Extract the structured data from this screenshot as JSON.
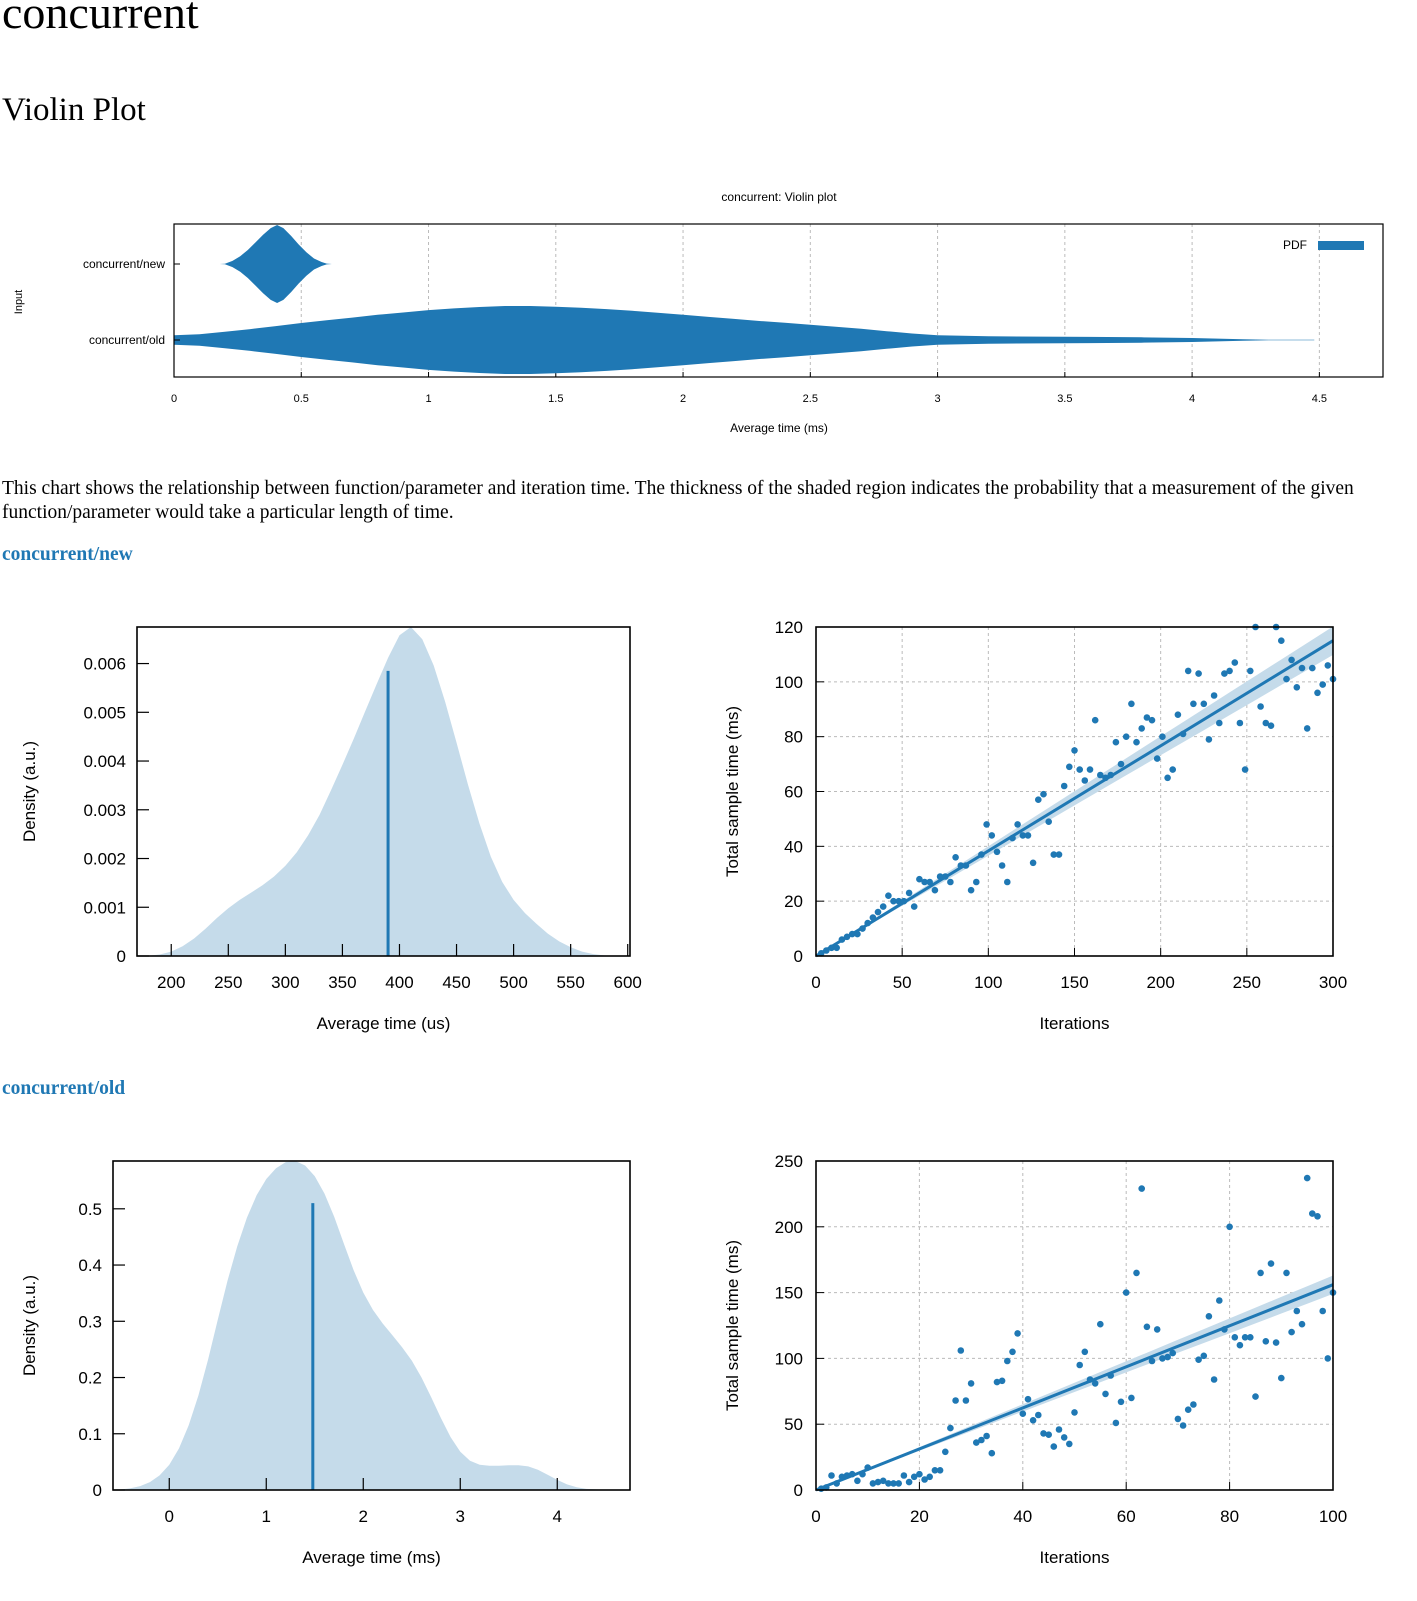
{
  "header": {
    "title": "concurrent",
    "subtitle": "Violin Plot"
  },
  "description": "This chart shows the relationship between function/parameter and iteration time. The thickness of the shaded region indicates the probability that a measurement of the given function/parameter would take a particular length of time.",
  "sections": [
    {
      "title": "concurrent/new"
    },
    {
      "title": "concurrent/old"
    }
  ],
  "colors": {
    "accent": "#1f78b4",
    "fill_light": "#c5dbea",
    "grid": "#bbbbbb"
  },
  "chart_data": [
    {
      "id": "violin",
      "type": "violin",
      "title": "concurrent: Violin plot",
      "xlabel": "Average time (ms)",
      "ylabel": "Input",
      "xlim": [
        0,
        4.75
      ],
      "xticks": [
        0,
        0.5,
        1,
        1.5,
        2,
        2.5,
        3,
        3.5,
        4,
        4.5
      ],
      "legend": {
        "label": "PDF",
        "position": "top-right"
      },
      "grid": true,
      "categories": [
        "concurrent/new",
        "concurrent/old"
      ],
      "series": [
        {
          "category": "concurrent/new",
          "density": [
            [
              0.18,
              0.0
            ],
            [
              0.2,
              0.005
            ],
            [
              0.23,
              0.08
            ],
            [
              0.26,
              0.2
            ],
            [
              0.29,
              0.36
            ],
            [
              0.32,
              0.55
            ],
            [
              0.35,
              0.75
            ],
            [
              0.38,
              0.92
            ],
            [
              0.405,
              1.0
            ],
            [
              0.43,
              0.92
            ],
            [
              0.46,
              0.72
            ],
            [
              0.49,
              0.5
            ],
            [
              0.52,
              0.3
            ],
            [
              0.55,
              0.14
            ],
            [
              0.58,
              0.05
            ],
            [
              0.6,
              0.01
            ],
            [
              0.62,
              0.0
            ]
          ]
        },
        {
          "category": "concurrent/old",
          "density": [
            [
              0,
              0.14
            ],
            [
              0.1,
              0.17
            ],
            [
              0.2,
              0.24
            ],
            [
              0.3,
              0.32
            ],
            [
              0.4,
              0.41
            ],
            [
              0.5,
              0.5
            ],
            [
              0.6,
              0.58
            ],
            [
              0.7,
              0.66
            ],
            [
              0.8,
              0.74
            ],
            [
              0.9,
              0.81
            ],
            [
              1.0,
              0.88
            ],
            [
              1.1,
              0.93
            ],
            [
              1.2,
              0.97
            ],
            [
              1.3,
              1.0
            ],
            [
              1.4,
              1.0
            ],
            [
              1.5,
              0.98
            ],
            [
              1.6,
              0.95
            ],
            [
              1.7,
              0.91
            ],
            [
              1.8,
              0.86
            ],
            [
              1.9,
              0.8
            ],
            [
              2.0,
              0.74
            ],
            [
              2.1,
              0.68
            ],
            [
              2.2,
              0.62
            ],
            [
              2.3,
              0.56
            ],
            [
              2.4,
              0.51
            ],
            [
              2.5,
              0.45
            ],
            [
              2.6,
              0.39
            ],
            [
              2.7,
              0.33
            ],
            [
              2.8,
              0.26
            ],
            [
              2.9,
              0.19
            ],
            [
              3.0,
              0.14
            ],
            [
              3.2,
              0.11
            ],
            [
              3.4,
              0.1
            ],
            [
              3.6,
              0.09
            ],
            [
              3.8,
              0.08
            ],
            [
              4.0,
              0.06
            ],
            [
              4.1,
              0.04
            ],
            [
              4.2,
              0.02
            ],
            [
              4.3,
              0.01
            ],
            [
              4.48,
              0.005
            ]
          ]
        }
      ]
    },
    {
      "id": "new_pdf",
      "type": "area",
      "xlabel": "Average time (us)",
      "ylabel": "Density (a.u.)",
      "xlim": [
        170,
        602
      ],
      "ylim": [
        0,
        0.00675
      ],
      "xticks": [
        200,
        250,
        300,
        350,
        400,
        450,
        500,
        550,
        600
      ],
      "yticks": [
        0,
        0.001,
        0.002,
        0.003,
        0.004,
        0.005,
        0.006
      ],
      "ytick_labels": [
        "0",
        "0.001",
        "0.002",
        "0.003",
        "0.004",
        "0.005",
        "0.006"
      ],
      "mean": {
        "x": 390,
        "y": 0.00585
      },
      "x": [
        170,
        180,
        190,
        200,
        210,
        220,
        230,
        240,
        250,
        260,
        270,
        280,
        290,
        300,
        310,
        320,
        330,
        340,
        350,
        360,
        370,
        380,
        390,
        400,
        410,
        420,
        430,
        440,
        450,
        460,
        470,
        480,
        490,
        500,
        510,
        520,
        530,
        540,
        550,
        560,
        570,
        580,
        590,
        600
      ],
      "values": [
        0,
        5e-06,
        3e-05,
        9e-05,
        0.0002,
        0.00036,
        0.00056,
        0.00078,
        0.00098,
        0.00115,
        0.0013,
        0.00145,
        0.00163,
        0.00185,
        0.00213,
        0.00248,
        0.0029,
        0.0034,
        0.00392,
        0.00446,
        0.00502,
        0.00558,
        0.00612,
        0.00658,
        0.00675,
        0.0065,
        0.00596,
        0.00522,
        0.00438,
        0.00352,
        0.00272,
        0.00204,
        0.00152,
        0.00115,
        0.00088,
        0.00066,
        0.00046,
        0.0003,
        0.00018,
        9e-05,
        4e-05,
        1e-05,
        0,
        0
      ]
    },
    {
      "id": "new_reg",
      "type": "scatter",
      "xlabel": "Iterations",
      "ylabel": "Total sample time (ms)",
      "xlim": [
        0,
        300
      ],
      "ylim": [
        0,
        120
      ],
      "xticks": [
        0,
        50,
        100,
        150,
        200,
        250,
        300
      ],
      "yticks": [
        0,
        20,
        40,
        60,
        80,
        100,
        120
      ],
      "grid": true,
      "fit": {
        "x": [
          0,
          300
        ],
        "y": [
          0,
          115
        ]
      },
      "x": [
        3,
        6,
        9,
        12,
        15,
        18,
        21,
        24,
        27,
        30,
        33,
        36,
        39,
        42,
        45,
        48,
        51,
        54,
        57,
        60,
        63,
        66,
        69,
        72,
        75,
        78,
        81,
        84,
        87,
        90,
        93,
        96,
        99,
        102,
        105,
        108,
        111,
        114,
        117,
        120,
        123,
        126,
        129,
        132,
        135,
        138,
        141,
        144,
        147,
        150,
        153,
        156,
        159,
        162,
        165,
        168,
        171,
        174,
        177,
        180,
        183,
        186,
        189,
        192,
        195,
        198,
        201,
        204,
        207,
        210,
        213,
        216,
        219,
        222,
        225,
        228,
        231,
        234,
        237,
        240,
        243,
        246,
        249,
        252,
        255,
        258,
        261,
        264,
        267,
        270,
        273,
        276,
        279,
        282,
        285,
        288,
        291,
        294,
        297,
        300
      ],
      "values": [
        1,
        2,
        3,
        3,
        6,
        7,
        8,
        8,
        10,
        12,
        14,
        16,
        18,
        22,
        20,
        20,
        20,
        23,
        18,
        28,
        27,
        27,
        24,
        29,
        29,
        27,
        36,
        33,
        33,
        24,
        27,
        37,
        48,
        44,
        38,
        33,
        27,
        43,
        48,
        44,
        44,
        34,
        57,
        59,
        49,
        37,
        37,
        62,
        69,
        75,
        68,
        64,
        68,
        86,
        66,
        65,
        66,
        78,
        70,
        80,
        92,
        78,
        83,
        87,
        86,
        72,
        80,
        65,
        68,
        88,
        81,
        104,
        92,
        103,
        92,
        79,
        95,
        85,
        103,
        104,
        107,
        85,
        68,
        104,
        120,
        91,
        85,
        84,
        120,
        115,
        101,
        108,
        98,
        105,
        83,
        105,
        96,
        99,
        106,
        101
      ]
    },
    {
      "id": "old_pdf",
      "type": "area",
      "xlabel": "Average time (ms)",
      "ylabel": "Density (a.u.)",
      "xlim": [
        -0.58,
        4.75
      ],
      "ylim": [
        0,
        0.585
      ],
      "xticks": [
        0,
        1,
        2,
        3,
        4
      ],
      "yticks": [
        0,
        0.1,
        0.2,
        0.3,
        0.4,
        0.5
      ],
      "ytick_labels": [
        "0",
        "0.1",
        "0.2",
        "0.3",
        "0.4",
        "0.5"
      ],
      "mean": {
        "x": 1.48,
        "y": 0.51
      },
      "x": [
        -0.58,
        -0.5,
        -0.4,
        -0.3,
        -0.2,
        -0.1,
        0,
        0.1,
        0.2,
        0.3,
        0.4,
        0.5,
        0.6,
        0.7,
        0.8,
        0.9,
        1.0,
        1.1,
        1.2,
        1.3,
        1.4,
        1.5,
        1.6,
        1.7,
        1.8,
        1.9,
        2.0,
        2.1,
        2.2,
        2.3,
        2.4,
        2.5,
        2.6,
        2.7,
        2.8,
        2.9,
        3.0,
        3.1,
        3.2,
        3.3,
        3.4,
        3.5,
        3.6,
        3.7,
        3.8,
        3.9,
        4.0,
        4.1,
        4.2,
        4.3,
        4.4,
        4.5
      ],
      "values": [
        0,
        0.001,
        0.003,
        0.007,
        0.014,
        0.026,
        0.045,
        0.074,
        0.115,
        0.168,
        0.232,
        0.303,
        0.372,
        0.433,
        0.484,
        0.524,
        0.553,
        0.572,
        0.583,
        0.585,
        0.577,
        0.558,
        0.527,
        0.486,
        0.438,
        0.391,
        0.351,
        0.32,
        0.296,
        0.275,
        0.254,
        0.23,
        0.2,
        0.165,
        0.128,
        0.094,
        0.068,
        0.052,
        0.045,
        0.043,
        0.043,
        0.044,
        0.044,
        0.042,
        0.036,
        0.027,
        0.018,
        0.01,
        0.005,
        0.002,
        0.001,
        0
      ]
    },
    {
      "id": "old_reg",
      "type": "scatter",
      "xlabel": "Iterations",
      "ylabel": "Total sample time (ms)",
      "xlim": [
        0,
        100
      ],
      "ylim": [
        0,
        250
      ],
      "xticks": [
        0,
        20,
        40,
        60,
        80,
        100
      ],
      "yticks": [
        0,
        50,
        100,
        150,
        200,
        250
      ],
      "grid": true,
      "fit": {
        "x": [
          0,
          100
        ],
        "y": [
          0,
          156
        ]
      },
      "x": [
        1,
        2,
        3,
        4,
        5,
        6,
        7,
        8,
        9,
        10,
        11,
        12,
        13,
        14,
        15,
        16,
        17,
        18,
        19,
        20,
        21,
        22,
        23,
        24,
        25,
        26,
        27,
        28,
        29,
        30,
        31,
        32,
        33,
        34,
        35,
        36,
        37,
        38,
        39,
        40,
        41,
        42,
        43,
        44,
        45,
        46,
        47,
        48,
        49,
        50,
        51,
        52,
        53,
        54,
        55,
        56,
        57,
        58,
        59,
        60,
        61,
        62,
        63,
        64,
        65,
        66,
        67,
        68,
        69,
        70,
        71,
        72,
        73,
        74,
        75,
        76,
        77,
        78,
        79,
        80,
        81,
        82,
        83,
        84,
        85,
        86,
        87,
        88,
        89,
        90,
        91,
        92,
        93,
        94,
        95,
        96,
        97,
        98,
        99,
        100
      ],
      "values": [
        1,
        2,
        11,
        5,
        10,
        11,
        12,
        7,
        12,
        17,
        5,
        6,
        7,
        5,
        5,
        5,
        11,
        6,
        10,
        12,
        8,
        10,
        15,
        15,
        29,
        47,
        68,
        106,
        68,
        81,
        36,
        38,
        41,
        28,
        82,
        83,
        98,
        105,
        119,
        58,
        69,
        53,
        57,
        43,
        42,
        33,
        46,
        40,
        35,
        59,
        95,
        105,
        84,
        81,
        126,
        73,
        87,
        51,
        67,
        150,
        70,
        165,
        229,
        124,
        98,
        122,
        100,
        101,
        104,
        54,
        49,
        61,
        65,
        99,
        102,
        132,
        84,
        144,
        122,
        200,
        116,
        110,
        116,
        116,
        71,
        165,
        113,
        172,
        112,
        85,
        165,
        120,
        136,
        126,
        237,
        210,
        208,
        136,
        100,
        150
      ]
    }
  ]
}
